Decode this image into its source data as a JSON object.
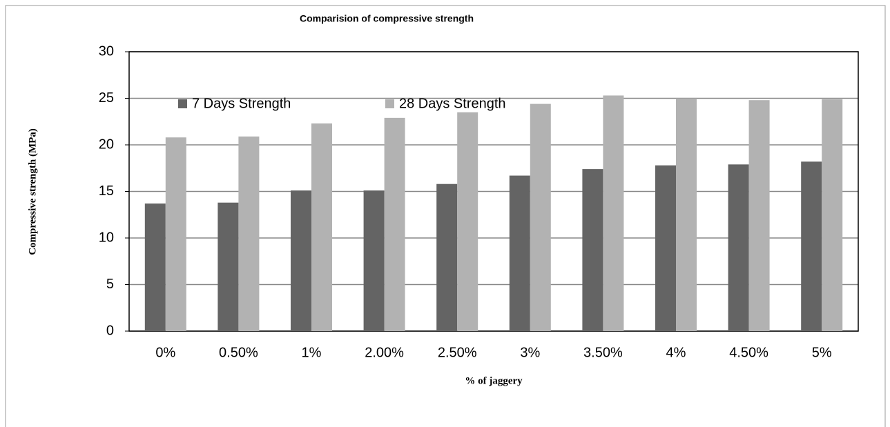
{
  "chart_data": {
    "type": "bar",
    "title": "Comparision of compressive strength",
    "xlabel": "% of jaggery",
    "ylabel": "Compressive strength (MPa)",
    "categories": [
      "0%",
      "0.50%",
      "1%",
      "2.00%",
      "2.50%",
      "3%",
      "3.50%",
      "4%",
      "4.50%",
      "5%"
    ],
    "series": [
      {
        "name": "7 Days Strength",
        "color": "#646464",
        "values": [
          13.7,
          13.8,
          15.1,
          15.1,
          15.8,
          16.7,
          17.4,
          17.8,
          17.9,
          18.2
        ]
      },
      {
        "name": "28 Days Strength",
        "color": "#b2b2b2",
        "values": [
          20.8,
          20.9,
          22.3,
          22.9,
          23.5,
          24.4,
          25.3,
          25.0,
          24.8,
          24.9
        ]
      }
    ],
    "ylim": [
      0,
      30
    ],
    "yticks": [
      0,
      5,
      10,
      15,
      20,
      25,
      30
    ],
    "grid": true,
    "legend": "top-left"
  }
}
